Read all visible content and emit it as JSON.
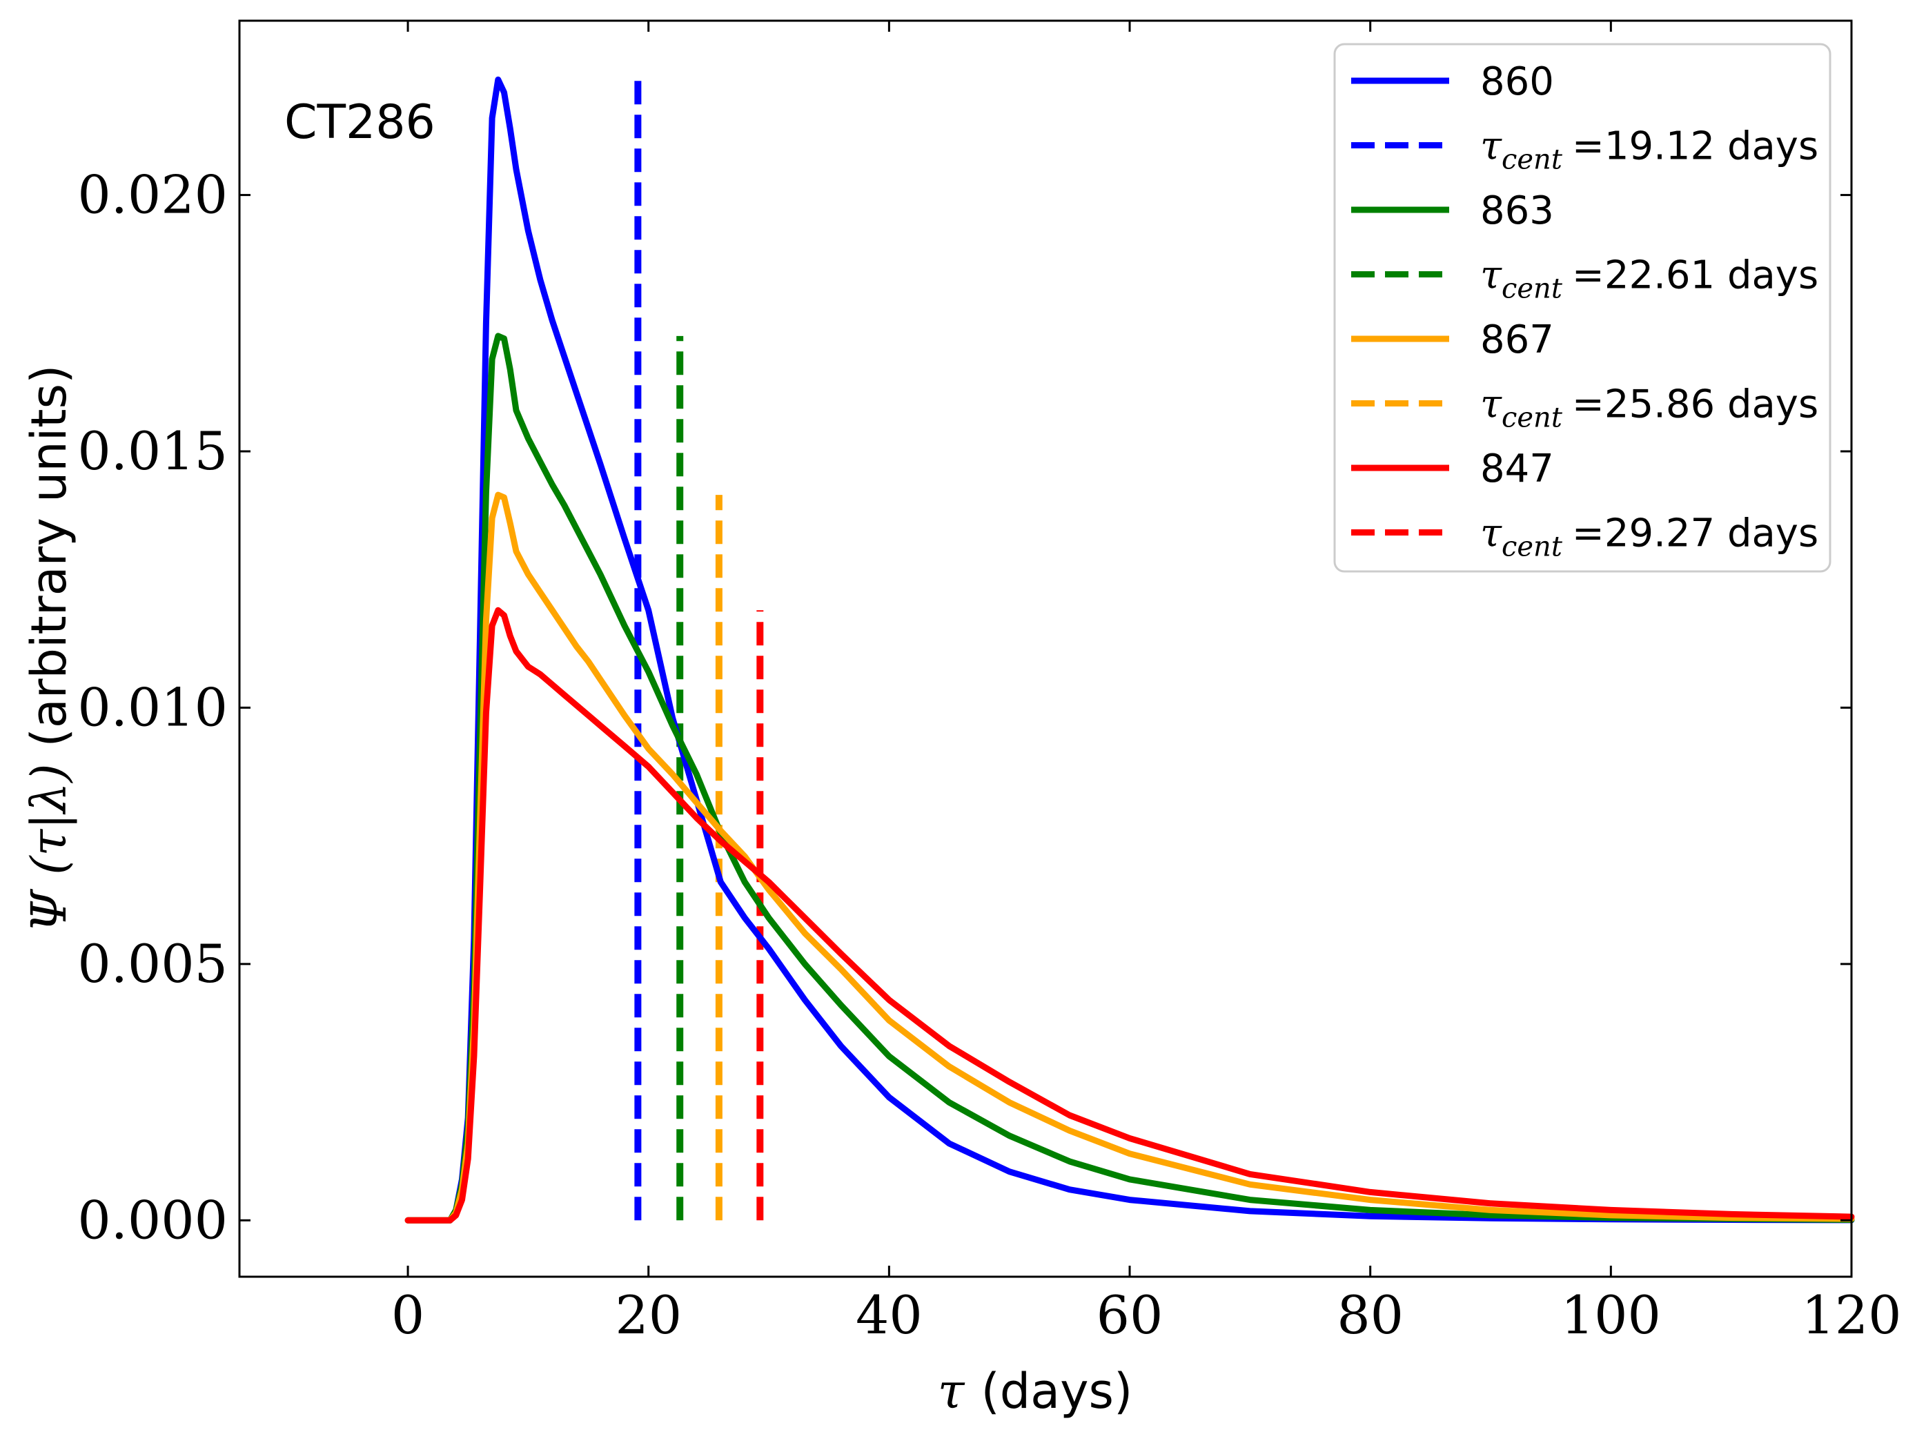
{
  "chart_data": {
    "type": "line",
    "title": "",
    "annotation": "CT286",
    "xlabel": {
      "symbol": "τ",
      "text": "(days)"
    },
    "ylabel": {
      "symbol": "Ψ (τ|λ)",
      "text": "(arbitrary units)"
    },
    "xlim": [
      -14,
      120
    ],
    "ylim": [
      -0.0011,
      0.0234
    ],
    "xticks": [
      0,
      20,
      40,
      60,
      80,
      100,
      120
    ],
    "xtick_labels": [
      "0",
      "20",
      "40",
      "60",
      "80",
      "100",
      "120"
    ],
    "yticks": [
      0.0,
      0.005,
      0.01,
      0.015,
      0.02
    ],
    "ytick_labels": [
      "0.000",
      "0.005",
      "0.010",
      "0.015",
      "0.020"
    ],
    "legend_position": "top-right",
    "x": [
      0,
      3.5,
      4,
      4.5,
      5,
      5.5,
      6,
      6.5,
      7,
      7.5,
      8,
      8.5,
      9,
      10,
      11,
      12,
      13,
      14,
      15,
      16,
      18,
      20,
      22,
      24,
      26,
      28,
      30,
      33,
      36,
      40,
      45,
      50,
      55,
      60,
      70,
      80,
      90,
      100,
      110,
      120
    ],
    "series": [
      {
        "name": "860",
        "color": "#0000ff",
        "centroid": 19.12,
        "centroid_label": "=19.12 days",
        "values": [
          0,
          0,
          0.0002,
          0.0008,
          0.002,
          0.0055,
          0.0115,
          0.0175,
          0.0215,
          0.02225,
          0.022,
          0.0213,
          0.0205,
          0.0193,
          0.01835,
          0.01755,
          0.01685,
          0.01615,
          0.01545,
          0.01475,
          0.0133,
          0.0119,
          0.0098,
          0.0082,
          0.0066,
          0.0059,
          0.0053,
          0.0043,
          0.0034,
          0.0024,
          0.0015,
          0.00095,
          0.0006,
          0.0004,
          0.00018,
          8e-05,
          4e-05,
          2e-05,
          1e-05,
          5e-06
        ]
      },
      {
        "name": "863",
        "color": "#008000",
        "centroid": 22.61,
        "centroid_label": "=22.61 days",
        "values": [
          0,
          0,
          0.0002,
          0.0007,
          0.0018,
          0.0045,
          0.0095,
          0.0142,
          0.0168,
          0.01725,
          0.0172,
          0.0166,
          0.0158,
          0.01525,
          0.0148,
          0.01435,
          0.01395,
          0.0135,
          0.01305,
          0.0126,
          0.0116,
          0.0107,
          0.00965,
          0.0087,
          0.00755,
          0.0066,
          0.0059,
          0.005,
          0.0042,
          0.0032,
          0.0023,
          0.00165,
          0.00115,
          0.0008,
          0.0004,
          0.0002,
          0.0001,
          5e-05,
          3e-05,
          1e-05
        ]
      },
      {
        "name": "867",
        "color": "#ffa500",
        "centroid": 25.86,
        "centroid_label": "=25.86 days",
        "values": [
          0,
          0,
          0.00015,
          0.0006,
          0.0015,
          0.0038,
          0.0078,
          0.0117,
          0.0137,
          0.01415,
          0.0141,
          0.0136,
          0.01305,
          0.0126,
          0.01225,
          0.0119,
          0.01155,
          0.0112,
          0.0109,
          0.01055,
          0.00985,
          0.0092,
          0.0087,
          0.00815,
          0.0076,
          0.0071,
          0.00645,
          0.0056,
          0.0049,
          0.0039,
          0.003,
          0.0023,
          0.00175,
          0.0013,
          0.0007,
          0.0004,
          0.0002,
          0.0001,
          5e-05,
          3e-05
        ]
      },
      {
        "name": "847",
        "color": "#ff0000",
        "centroid": 29.27,
        "centroid_label": "=29.27 days",
        "values": [
          0,
          0,
          0.0001,
          0.0004,
          0.0012,
          0.0032,
          0.0065,
          0.0099,
          0.0116,
          0.0119,
          0.0118,
          0.0114,
          0.0111,
          0.0108,
          0.01065,
          0.01045,
          0.01025,
          0.01005,
          0.00985,
          0.00965,
          0.00925,
          0.00885,
          0.00835,
          0.00785,
          0.0074,
          0.007,
          0.0066,
          0.0059,
          0.0052,
          0.0043,
          0.0034,
          0.0027,
          0.00205,
          0.0016,
          0.0009,
          0.00055,
          0.00033,
          0.0002,
          0.00012,
          7e-05
        ]
      }
    ]
  }
}
